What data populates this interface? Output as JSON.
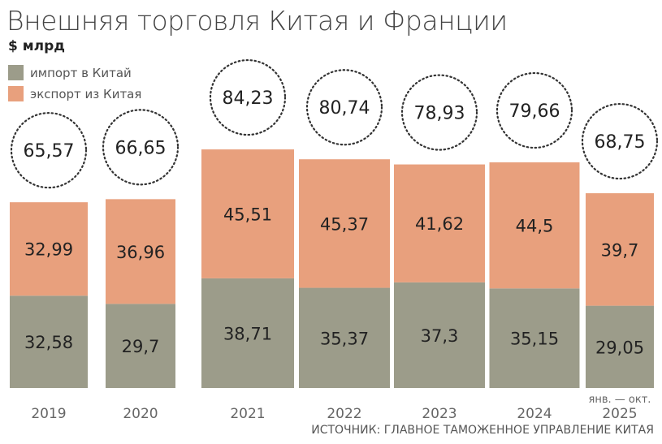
{
  "colors": {
    "import": "#9c9c8a",
    "export": "#e8a07d",
    "text": "#222222",
    "axis_text": "#666666"
  },
  "chart_data": {
    "type": "bar",
    "stacked": true,
    "title": "Внешняя торговля Китая и Франции",
    "unit": "$ млрд",
    "categories": [
      "2019",
      "2020",
      "2021",
      "2022",
      "2023",
      "2024",
      "2025"
    ],
    "category_notes": {
      "2025": "янв. — окт."
    },
    "series": [
      {
        "name": "импорт в Китай",
        "values": [
          32.58,
          29.7,
          38.71,
          35.37,
          37.3,
          35.15,
          29.05
        ],
        "labels": [
          "32,58",
          "29,7",
          "38,71",
          "35,37",
          "37,3",
          "35,15",
          "29,05"
        ]
      },
      {
        "name": "экспорт из Китая",
        "values": [
          32.99,
          36.96,
          45.51,
          45.37,
          41.62,
          44.5,
          39.7
        ],
        "labels": [
          "32,99",
          "36,96",
          "45,51",
          "45,37",
          "41,62",
          "44,5",
          "39,7"
        ]
      }
    ],
    "totals": [
      65.57,
      66.65,
      84.23,
      80.74,
      78.93,
      79.66,
      68.75
    ],
    "total_labels": [
      "65,57",
      "66,65",
      "84,23",
      "80,74",
      "78,93",
      "79,66",
      "68,75"
    ],
    "grid": false,
    "legend_placement": "top-left"
  },
  "source": "ИСТОЧНИК: ГЛАВНОЕ ТАМОЖЕННОЕ УПРАВЛЕНИЕ КИТАЯ"
}
